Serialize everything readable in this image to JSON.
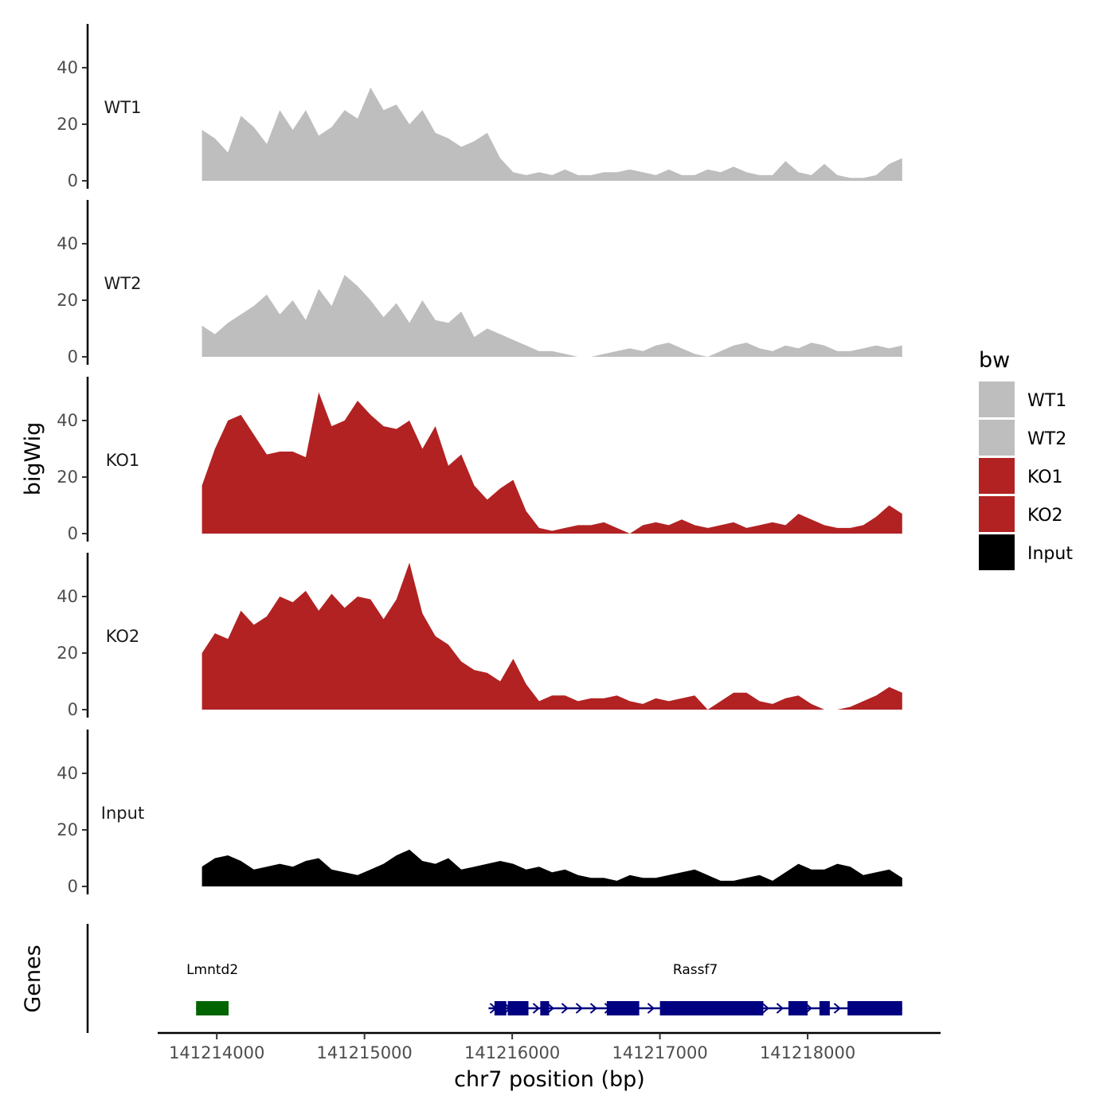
{
  "chart_data": {
    "type": "area",
    "ylabel": "bigWig",
    "xlabel": "chr7 position (bp)",
    "genes_label": "Genes",
    "xlim": [
      141213600,
      141218900
    ],
    "data_range": [
      141213900,
      141218640
    ],
    "x_ticks": [
      141214000,
      141215000,
      141216000,
      141217000,
      141218000
    ],
    "x_tick_labels": [
      "141214000",
      "141215000",
      "141216000",
      "141217000",
      "141218000"
    ],
    "ylim": [
      0,
      55
    ],
    "y_ticks": [
      0,
      20,
      40
    ],
    "y_tick_labels": [
      "0",
      "20",
      "40"
    ],
    "tracks": [
      {
        "name": "WT1",
        "color": "#bebebe",
        "values": [
          18,
          15,
          10,
          23,
          19,
          13,
          25,
          18,
          25,
          16,
          19,
          25,
          22,
          33,
          25,
          27,
          20,
          25,
          17,
          15,
          12,
          14,
          17,
          8,
          3,
          2,
          3,
          2,
          4,
          2,
          2,
          3,
          3,
          4,
          3,
          2,
          4,
          2,
          2,
          4,
          3,
          5,
          3,
          2,
          2,
          7,
          3,
          2,
          6,
          2,
          1,
          1,
          2,
          6,
          8
        ]
      },
      {
        "name": "WT2",
        "color": "#bebebe",
        "values": [
          11,
          8,
          12,
          15,
          18,
          22,
          15,
          20,
          13,
          24,
          18,
          29,
          25,
          20,
          14,
          19,
          12,
          20,
          13,
          12,
          16,
          7,
          10,
          8,
          6,
          4,
          2,
          2,
          1,
          0,
          0,
          1,
          2,
          3,
          2,
          4,
          5,
          3,
          1,
          0,
          2,
          4,
          5,
          3,
          2,
          4,
          3,
          5,
          4,
          2,
          2,
          3,
          4,
          3,
          4
        ]
      },
      {
        "name": "KO1",
        "color": "#b22222",
        "values": [
          17,
          30,
          40,
          42,
          35,
          28,
          29,
          29,
          27,
          50,
          38,
          40,
          47,
          42,
          38,
          37,
          40,
          30,
          38,
          24,
          28,
          17,
          12,
          16,
          19,
          8,
          2,
          1,
          2,
          3,
          3,
          4,
          2,
          0,
          3,
          4,
          3,
          5,
          3,
          2,
          3,
          4,
          2,
          3,
          4,
          3,
          7,
          5,
          3,
          2,
          2,
          3,
          6,
          10,
          7
        ]
      },
      {
        "name": "KO2",
        "color": "#b22222",
        "values": [
          20,
          27,
          25,
          35,
          30,
          33,
          40,
          38,
          42,
          35,
          41,
          36,
          40,
          39,
          32,
          39,
          52,
          34,
          26,
          23,
          17,
          14,
          13,
          10,
          18,
          9,
          3,
          5,
          5,
          3,
          4,
          4,
          5,
          3,
          2,
          4,
          3,
          4,
          5,
          0,
          3,
          6,
          6,
          3,
          2,
          4,
          5,
          2,
          0,
          0,
          1,
          3,
          5,
          8,
          6
        ]
      },
      {
        "name": "Input",
        "color": "#000000",
        "values": [
          7,
          10,
          11,
          9,
          6,
          7,
          8,
          7,
          9,
          10,
          6,
          5,
          4,
          6,
          8,
          11,
          13,
          9,
          8,
          10,
          6,
          7,
          8,
          9,
          8,
          6,
          7,
          5,
          6,
          4,
          3,
          3,
          2,
          4,
          3,
          3,
          4,
          5,
          6,
          4,
          2,
          2,
          3,
          4,
          2,
          5,
          8,
          6,
          6,
          8,
          7,
          4,
          5,
          6,
          3
        ]
      }
    ],
    "gene_tracks": [
      {
        "name": "Lmntd2",
        "color": "#006400",
        "strand": "-",
        "start": 141213860,
        "end": 141214080,
        "exons": [
          [
            141213860,
            141214080
          ]
        ]
      },
      {
        "name": "Rassf7",
        "color": "#000080",
        "strand": "+",
        "start": 141215840,
        "end": 141218640,
        "exons": [
          [
            141215880,
            141215960
          ],
          [
            141215970,
            141216110
          ],
          [
            141216190,
            141216250
          ],
          [
            141216640,
            141216860
          ],
          [
            141217000,
            141217700
          ],
          [
            141217870,
            141218000
          ],
          [
            141218080,
            141218150
          ],
          [
            141218270,
            141218640
          ]
        ]
      }
    ],
    "legend": {
      "title": "bw",
      "position": "right",
      "entries": [
        {
          "label": "WT1",
          "color": "#bebebe"
        },
        {
          "label": "WT2",
          "color": "#bebebe"
        },
        {
          "label": "KO1",
          "color": "#b22222"
        },
        {
          "label": "KO2",
          "color": "#b22222"
        },
        {
          "label": "Input",
          "color": "#000000"
        }
      ]
    }
  }
}
